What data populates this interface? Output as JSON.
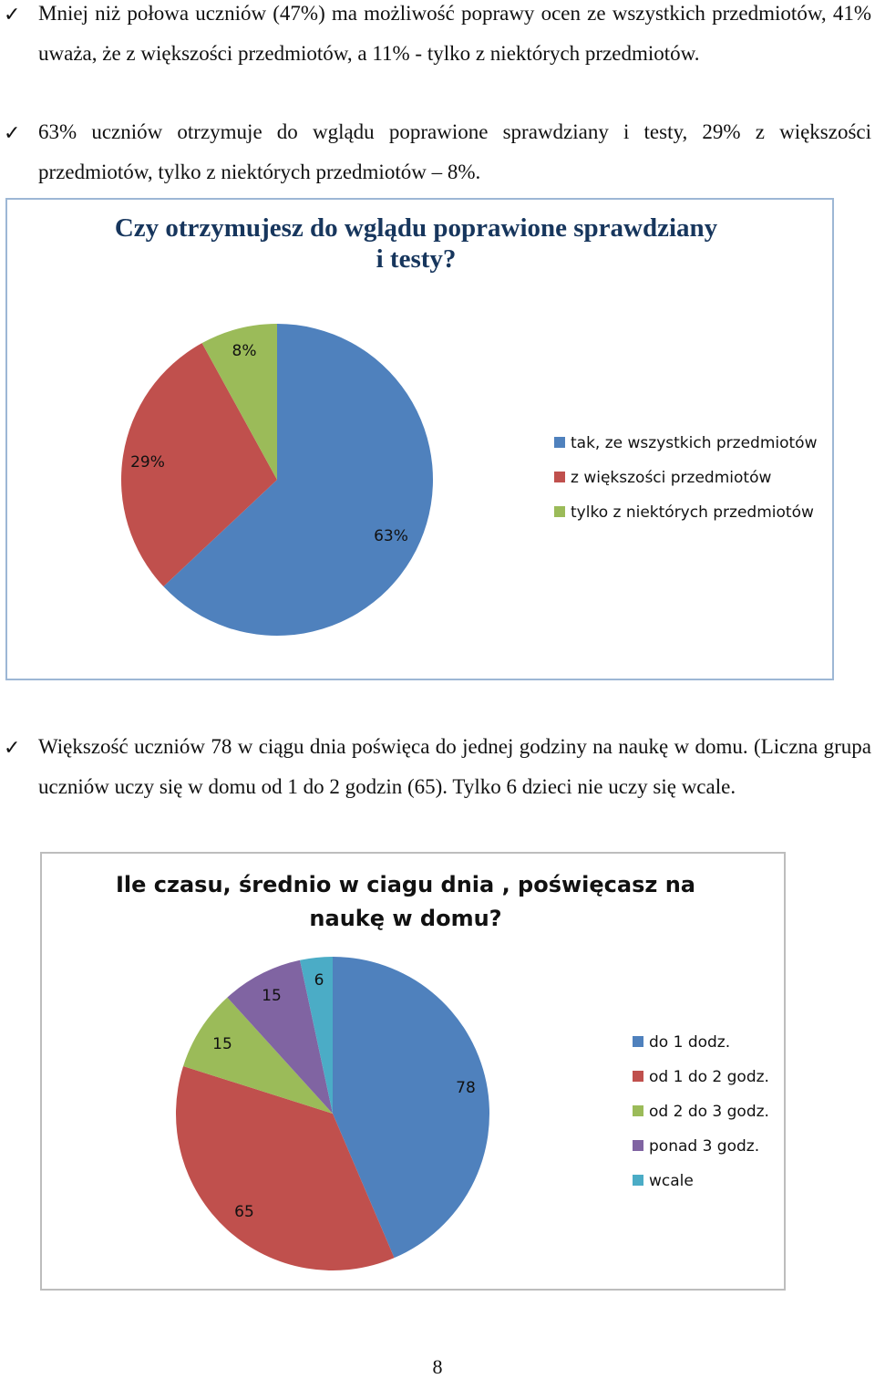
{
  "paragraphs": {
    "p1": {
      "check": "✓",
      "text": "Mniej niż połowa uczniów (47%) ma możliwość poprawy ocen ze wszystkich przedmiotów, 41% uważa, że z większości przedmiotów, a 11% - tylko z niektórych przedmiotów."
    },
    "p2": {
      "check": "✓",
      "text": "63% uczniów otrzymuje do wglądu poprawione sprawdziany i testy, 29% z większości przedmiotów, tylko z niektórych przedmiotów – 8%."
    },
    "p3": {
      "check": "✓",
      "text": "Większość uczniów 78 w ciągu dnia  poświęca do jednej godziny na naukę w domu. (Liczna grupa uczniów uczy się w domu od 1 do 2 godzin (65). Tylko 6 dzieci nie uczy się wcale."
    }
  },
  "chart_data": [
    {
      "type": "pie",
      "title_lines": [
        "Czy otrzymujesz do wglądu poprawione sprawdziany",
        "i testy?"
      ],
      "categories": [
        "tak, ze wszystkich przedmiotów",
        "z większości przedmiotów",
        "tylko z niektórych przedmiotów"
      ],
      "values": [
        63,
        29,
        8
      ],
      "data_labels": [
        "63%",
        "29%",
        "8%"
      ],
      "colors": [
        "#4f81bd",
        "#c0504d",
        "#9bbb59"
      ],
      "legend_position": "right"
    },
    {
      "type": "pie",
      "title_lines": [
        "Ile czasu, średnio w ciagu dnia , poświęcasz na",
        "naukę w domu?"
      ],
      "categories": [
        "do 1 dodz.",
        "od 1 do 2 godz.",
        "od 2 do 3 godz.",
        "ponad 3 godz.",
        "wcale"
      ],
      "values": [
        78,
        65,
        15,
        15,
        6
      ],
      "data_labels": [
        "78",
        "65",
        "15",
        "15",
        "6"
      ],
      "colors": [
        "#4f81bd",
        "#c0504d",
        "#9bbb59",
        "#8064a2",
        "#4bacc6"
      ],
      "legend_position": "right"
    }
  ],
  "page_number": "8"
}
